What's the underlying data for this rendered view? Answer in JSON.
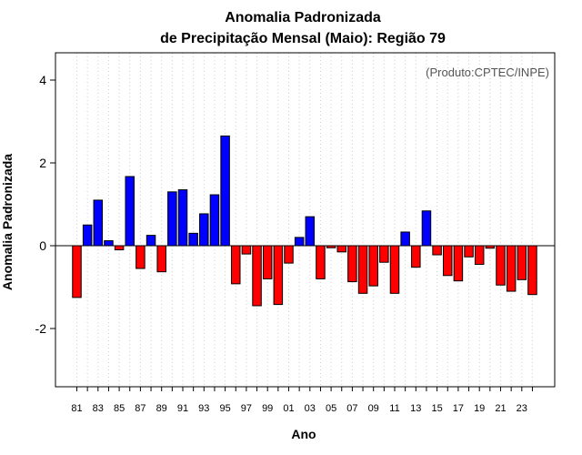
{
  "chart_data": {
    "type": "bar",
    "title": [
      "Anomalia Padronizada",
      "de Precipitação Mensal (Maio): Região 79"
    ],
    "ylabel": "Anomalia Padronizada",
    "xlabel": "Ano",
    "source_note": "(Produto:CPTEC/INPE)",
    "ylim": [
      -3.5,
      4.6
    ],
    "yticks": [
      -2,
      0,
      2,
      4
    ],
    "ytick_labels": [
      "-2",
      "0",
      "2",
      "4"
    ],
    "grid": "vertical dotted at each year",
    "colors": {
      "positive": "#0000ff",
      "negative": "#ff0000",
      "grid": "#cccccc"
    },
    "categories": [
      "81",
      "82",
      "83",
      "84",
      "85",
      "86",
      "87",
      "88",
      "89",
      "90",
      "91",
      "92",
      "93",
      "94",
      "95",
      "96",
      "97",
      "98",
      "99",
      "00",
      "01",
      "02",
      "03",
      "04",
      "05",
      "06",
      "07",
      "08",
      "09",
      "10",
      "11",
      "12",
      "13",
      "14",
      "15",
      "16",
      "17",
      "18",
      "19",
      "20",
      "21",
      "22",
      "23",
      "24"
    ],
    "xtick_labels": [
      "81",
      "83",
      "85",
      "87",
      "89",
      "91",
      "93",
      "95",
      "97",
      "99",
      "01",
      "03",
      "05",
      "07",
      "09",
      "11",
      "13",
      "15",
      "17",
      "19",
      "21",
      "23"
    ],
    "values": [
      -1.25,
      0.5,
      1.1,
      0.12,
      -0.1,
      1.67,
      -0.55,
      0.25,
      -0.63,
      1.3,
      1.35,
      0.3,
      0.77,
      1.23,
      2.65,
      -0.92,
      -0.2,
      -1.45,
      -0.8,
      -1.42,
      -0.42,
      0.2,
      0.7,
      -0.8,
      -0.05,
      -0.15,
      -0.87,
      -1.15,
      -0.97,
      -0.4,
      -1.15,
      0.33,
      -0.52,
      0.84,
      -0.22,
      -0.72,
      -0.85,
      -0.27,
      -0.45,
      -0.06,
      -0.95,
      -1.1,
      -0.82,
      -1.18
    ]
  }
}
